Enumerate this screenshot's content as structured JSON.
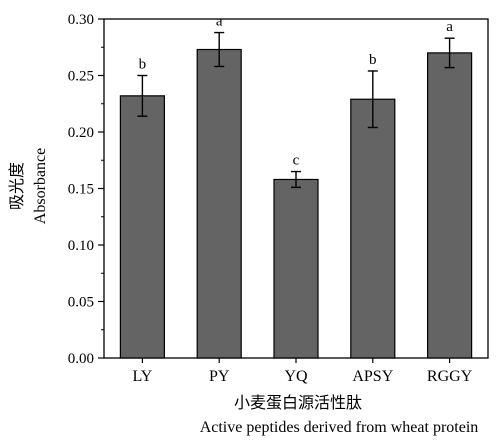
{
  "chart_data": {
    "type": "bar",
    "categories": [
      "LY",
      "PY",
      "YQ",
      "APSY",
      "RGGY"
    ],
    "values": [
      0.232,
      0.273,
      0.158,
      0.229,
      0.27
    ],
    "errors": [
      0.018,
      0.015,
      0.007,
      0.025,
      0.013
    ],
    "significance": [
      "b",
      "a",
      "c",
      "b",
      "a"
    ],
    "bar_color": "#646464",
    "ylim": [
      0.0,
      0.3
    ],
    "yticks": [
      "0.00",
      "0.05",
      "0.10",
      "0.15",
      "0.20",
      "0.25",
      "0.30"
    ],
    "ylabel_cn": "吸光度",
    "ylabel_en": "Absorbance",
    "xlabel_cn": "小麦蛋白源活性肽",
    "xlabel_en": "Active peptides derived from wheat protein",
    "grid": false
  }
}
